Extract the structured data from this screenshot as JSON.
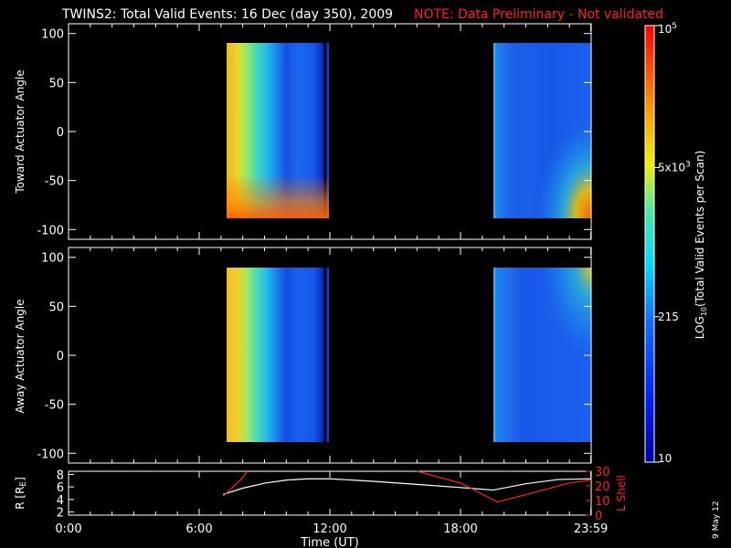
{
  "header": {
    "title": "TWINS2: Total Valid Events: 16 Dec (day 350), 2009",
    "note": "NOTE: Data Preliminary - Not validated"
  },
  "colors": {
    "note": "#ff2020",
    "lshell": "#ff2020",
    "radius": "#ffffff",
    "axis": "#ffffff"
  },
  "footer": {
    "date_stamp": "9 May 12"
  },
  "chart_data": [
    {
      "type": "heatmap",
      "ylabel": "Toward Actuator Angle",
      "xlim": [
        0,
        24
      ],
      "ylim": [
        -110,
        110
      ],
      "yticks": [
        100,
        50,
        0,
        -50,
        -100
      ],
      "data_y_range": [
        -88,
        90
      ],
      "segments": [
        {
          "x_start": 7.1,
          "x_end": 11.8
        },
        {
          "x_start": 19.6,
          "x_end": 24
        }
      ],
      "color_scale": "log",
      "zlim": [
        10,
        100000
      ]
    },
    {
      "type": "heatmap",
      "ylabel": "Away Actuator Angle",
      "xlim": [
        0,
        24
      ],
      "ylim": [
        -110,
        110
      ],
      "yticks": [
        100,
        50,
        0,
        -50,
        -100
      ],
      "data_y_range": [
        -88,
        90
      ],
      "segments": [
        {
          "x_start": 7.1,
          "x_end": 11.8
        },
        {
          "x_start": 19.6,
          "x_end": 24
        }
      ],
      "color_scale": "log",
      "zlim": [
        10,
        100000
      ]
    },
    {
      "type": "line",
      "ylabel": "R [R",
      "ylabel_sub": "E",
      "ylabel_close": "]",
      "ylabel_right": "L Shell",
      "xlabel": "Time (UT)",
      "xlim": [
        0,
        24
      ],
      "xticks": [
        {
          "value": 0,
          "label": "0:00"
        },
        {
          "value": 6,
          "label": "6:00"
        },
        {
          "value": 12,
          "label": "12:00"
        },
        {
          "value": 18,
          "label": "18:00"
        },
        {
          "value": 23.983,
          "label": "23:59"
        }
      ],
      "ylim_left": [
        1.5,
        8.5
      ],
      "yticks_left": [
        2,
        4,
        6,
        8
      ],
      "ylim_right": [
        0,
        30
      ],
      "yticks_right": [
        0,
        10,
        20,
        30
      ],
      "series": [
        {
          "name": "R",
          "axis": "left",
          "x": [
            7.1,
            8.0,
            9.0,
            10.0,
            11.0,
            12.0,
            14.0,
            16.0,
            18.0,
            19.5,
            21.0,
            22.5,
            24.0
          ],
          "y": [
            4.8,
            5.8,
            6.6,
            7.1,
            7.3,
            7.3,
            6.9,
            6.4,
            5.9,
            5.5,
            6.5,
            7.2,
            7.3
          ]
        },
        {
          "name": "L Shell",
          "axis": "right",
          "x_in": [
            7.1,
            7.9,
            8.2
          ],
          "y_in": [
            13,
            24,
            34
          ],
          "x_out": [
            16.0,
            18.0,
            19.7,
            21.5,
            23.0,
            24.0
          ],
          "y_out": [
            34,
            22,
            9,
            16,
            22,
            24
          ]
        }
      ]
    }
  ],
  "colorbar": {
    "label_main": "LOG",
    "label_sub": "10",
    "label_rest": "(Total Valid Events per Scan)",
    "scale": "log",
    "zlim": [
      10,
      100000
    ],
    "ticks": [
      {
        "value": 100000,
        "base": "10",
        "sup": "5"
      },
      {
        "value": 5000,
        "base": "5x10",
        "sup": "3"
      },
      {
        "value": 215,
        "base": "215",
        "sup": ""
      },
      {
        "value": 10,
        "base": "10",
        "sup": ""
      }
    ]
  }
}
